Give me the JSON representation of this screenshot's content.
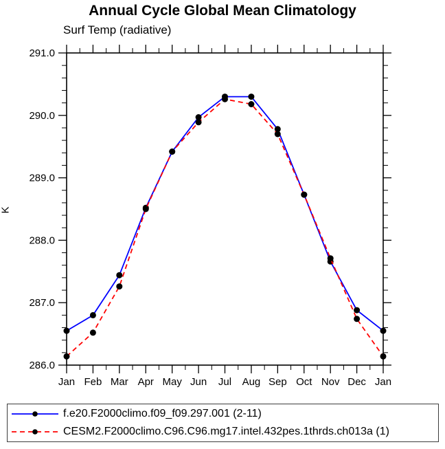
{
  "chart_data": {
    "type": "line",
    "title": "Annual Cycle Global Mean Climatology",
    "subtitle": "Surf Temp (radiative)",
    "ylabel": "K",
    "categories": [
      "Jan",
      "Feb",
      "Mar",
      "Apr",
      "May",
      "Jun",
      "Jul",
      "Aug",
      "Sep",
      "Oct",
      "Nov",
      "Dec",
      "Jan"
    ],
    "ylim": [
      286.0,
      291.0
    ],
    "y_major_tick_interval": 1.0,
    "y_minor_tick_interval": 0.2,
    "y_tick_labels": [
      "286.0",
      "287.0",
      "288.0",
      "289.0",
      "290.0",
      "291.0"
    ],
    "x_minor_ticks": "month-midpoints",
    "grid": false,
    "legend_position": "bottom-left-box",
    "frame_color": "#000000",
    "marker_color": "#000000",
    "series": [
      {
        "name": "f.e20.F2000climo.f09_f09.297.001 (2-11)",
        "color": "#0000ff",
        "line_style": "solid",
        "marker": "filled-circle",
        "values": [
          286.55,
          286.8,
          287.44,
          288.52,
          289.42,
          289.97,
          290.3,
          290.3,
          289.78,
          288.73,
          287.66,
          286.88,
          286.55
        ]
      },
      {
        "name": "CESM2.F2000climo.C96.C96.mg17.intel.432pes.1thrds.ch013a (1)",
        "color": "#ff0000",
        "line_style": "dashed",
        "marker": "filled-circle",
        "values": [
          286.14,
          286.52,
          287.26,
          288.5,
          289.42,
          289.89,
          290.26,
          290.18,
          289.7,
          288.73,
          287.71,
          286.74,
          286.14
        ]
      }
    ]
  }
}
